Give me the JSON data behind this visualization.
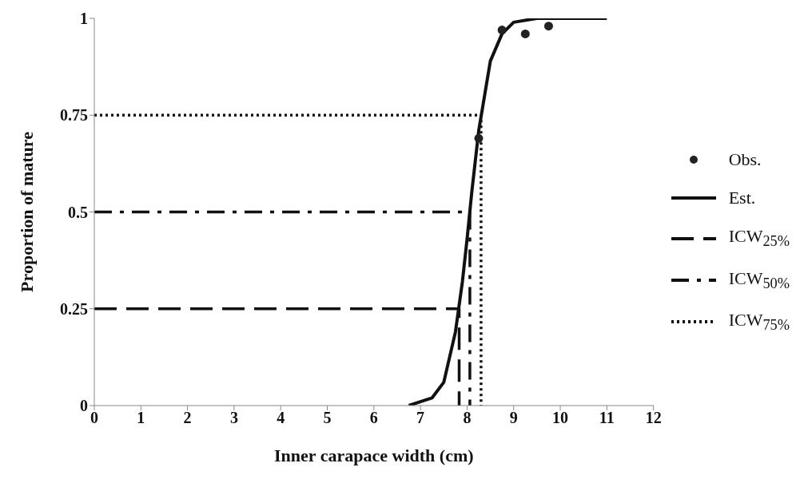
{
  "chart_data": {
    "type": "line",
    "xlabel": "Inner carapace width (cm)",
    "ylabel": "Proportion of mature",
    "xlim": [
      0,
      12
    ],
    "xticks": [
      0,
      1,
      2,
      3,
      4,
      5,
      6,
      7,
      8,
      9,
      10,
      11,
      12
    ],
    "ylim": [
      0,
      1
    ],
    "yticks": [
      0,
      0.25,
      0.5,
      0.75,
      1
    ],
    "grid": false,
    "legend": "right",
    "series": [
      {
        "name": "Obs.",
        "type": "scatter",
        "color": "#222222",
        "marker": "circle",
        "x": [
          8.25,
          8.75,
          9.25,
          9.75
        ],
        "values": [
          0.69,
          0.97,
          0.96,
          0.98
        ]
      },
      {
        "name": "Est.",
        "color": "#111111",
        "marker": "none",
        "line_style": "solid",
        "x": [
          6.75,
          7,
          7.25,
          7.5,
          7.75,
          7.9,
          8,
          8.1,
          8.25,
          8.5,
          8.75,
          9,
          9.5,
          10,
          11
        ],
        "values": [
          0,
          0.01,
          0.02,
          0.06,
          0.19,
          0.32,
          0.43,
          0.55,
          0.71,
          0.89,
          0.96,
          0.99,
          1,
          1,
          1
        ]
      },
      {
        "name": "ICW$_{25%}$",
        "color": "#111111",
        "marker": "none",
        "line_style": "dashed",
        "x": [
          0,
          7.83,
          7.83
        ],
        "values": [
          0.25,
          0.25,
          0
        ]
      },
      {
        "name": "ICW$_{50%}$",
        "color": "#111111",
        "marker": "none",
        "line_style": "dashed",
        "x": [
          0,
          8.06,
          8.06
        ],
        "values": [
          0.5,
          0.5,
          0
        ]
      },
      {
        "name": "ICW$_{75%}$",
        "color": "#111111",
        "marker": "none",
        "line_style": "dotted",
        "x": [
          0,
          8.3,
          8.3
        ],
        "values": [
          0.75,
          0.75,
          0
        ]
      }
    ]
  }
}
